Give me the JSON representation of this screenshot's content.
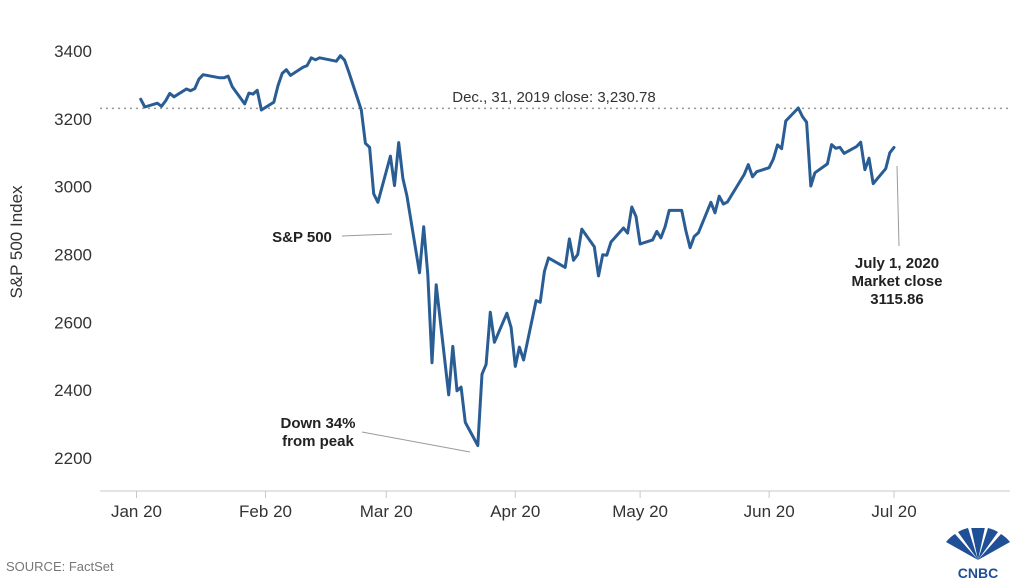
{
  "chart_data": {
    "type": "line",
    "ylabel": "S&P 500 Index",
    "ylim": [
      2100,
      3450
    ],
    "yticks": [
      2200,
      2400,
      2600,
      2800,
      3000,
      3200,
      3400
    ],
    "xlim": [
      "2020-01-01",
      "2020-07-31"
    ],
    "xticks": [
      {
        "label": "Jan 20",
        "date": "2020-01-01"
      },
      {
        "label": "Feb 20",
        "date": "2020-02-01"
      },
      {
        "label": "Mar 20",
        "date": "2020-03-01"
      },
      {
        "label": "Apr 20",
        "date": "2020-04-01"
      },
      {
        "label": "May 20",
        "date": "2020-05-01"
      },
      {
        "label": "Jun 20",
        "date": "2020-06-01"
      },
      {
        "label": "Jul 20",
        "date": "2020-07-01"
      }
    ],
    "grid": false,
    "series": [
      {
        "name": "S&P 500",
        "color": "#2a5d94",
        "x": [
          "2020-01-02",
          "2020-01-03",
          "2020-01-06",
          "2020-01-07",
          "2020-01-08",
          "2020-01-09",
          "2020-01-10",
          "2020-01-13",
          "2020-01-14",
          "2020-01-15",
          "2020-01-16",
          "2020-01-17",
          "2020-01-21",
          "2020-01-22",
          "2020-01-23",
          "2020-01-24",
          "2020-01-27",
          "2020-01-28",
          "2020-01-29",
          "2020-01-30",
          "2020-01-31",
          "2020-02-03",
          "2020-02-04",
          "2020-02-05",
          "2020-02-06",
          "2020-02-07",
          "2020-02-10",
          "2020-02-11",
          "2020-02-12",
          "2020-02-13",
          "2020-02-14",
          "2020-02-18",
          "2020-02-19",
          "2020-02-20",
          "2020-02-21",
          "2020-02-24",
          "2020-02-25",
          "2020-02-26",
          "2020-02-27",
          "2020-02-28",
          "2020-03-02",
          "2020-03-03",
          "2020-03-04",
          "2020-03-05",
          "2020-03-06",
          "2020-03-09",
          "2020-03-10",
          "2020-03-11",
          "2020-03-12",
          "2020-03-13",
          "2020-03-16",
          "2020-03-17",
          "2020-03-18",
          "2020-03-19",
          "2020-03-20",
          "2020-03-23",
          "2020-03-24",
          "2020-03-25",
          "2020-03-26",
          "2020-03-27",
          "2020-03-30",
          "2020-03-31",
          "2020-04-01",
          "2020-04-02",
          "2020-04-03",
          "2020-04-06",
          "2020-04-07",
          "2020-04-08",
          "2020-04-09",
          "2020-04-13",
          "2020-04-14",
          "2020-04-15",
          "2020-04-16",
          "2020-04-17",
          "2020-04-20",
          "2020-04-21",
          "2020-04-22",
          "2020-04-23",
          "2020-04-24",
          "2020-04-27",
          "2020-04-28",
          "2020-04-29",
          "2020-04-30",
          "2020-05-01",
          "2020-05-04",
          "2020-05-05",
          "2020-05-06",
          "2020-05-07",
          "2020-05-08",
          "2020-05-11",
          "2020-05-12",
          "2020-05-13",
          "2020-05-14",
          "2020-05-15",
          "2020-05-18",
          "2020-05-19",
          "2020-05-20",
          "2020-05-21",
          "2020-05-22",
          "2020-05-26",
          "2020-05-27",
          "2020-05-28",
          "2020-05-29",
          "2020-06-01",
          "2020-06-02",
          "2020-06-03",
          "2020-06-04",
          "2020-06-05",
          "2020-06-08",
          "2020-06-09",
          "2020-06-10",
          "2020-06-11",
          "2020-06-12",
          "2020-06-15",
          "2020-06-16",
          "2020-06-17",
          "2020-06-18",
          "2020-06-19",
          "2020-06-22",
          "2020-06-23",
          "2020-06-24",
          "2020-06-25",
          "2020-06-26",
          "2020-06-29",
          "2020-06-30",
          "2020-07-01"
        ],
        "values": [
          3258,
          3235,
          3246,
          3237,
          3253,
          3275,
          3265,
          3288,
          3283,
          3289,
          3317,
          3330,
          3321,
          3321,
          3326,
          3295,
          3244,
          3276,
          3273,
          3284,
          3226,
          3249,
          3298,
          3334,
          3345,
          3328,
          3352,
          3357,
          3380,
          3374,
          3380,
          3370,
          3386,
          3373,
          3338,
          3226,
          3128,
          3116,
          2979,
          2954,
          3090,
          3003,
          3130,
          3024,
          2972,
          2746,
          2882,
          2741,
          2481,
          2711,
          2386,
          2529,
          2398,
          2409,
          2305,
          2237,
          2447,
          2476,
          2630,
          2541,
          2627,
          2585,
          2470,
          2527,
          2489,
          2664,
          2659,
          2750,
          2790,
          2762,
          2846,
          2783,
          2800,
          2875,
          2823,
          2737,
          2799,
          2798,
          2837,
          2878,
          2863,
          2940,
          2912,
          2831,
          2843,
          2868,
          2849,
          2882,
          2930,
          2930,
          2870,
          2820,
          2853,
          2864,
          2954,
          2923,
          2972,
          2949,
          2955,
          3036,
          3065,
          3029,
          3044,
          3056,
          3081,
          3123,
          3112,
          3194,
          3232,
          3207,
          3190,
          3002,
          3041,
          3067,
          3124,
          3113,
          3116,
          3098,
          3118,
          3131,
          3050,
          3084,
          3009,
          3053,
          3100,
          3115.86
        ]
      }
    ],
    "reference_line": {
      "value": 3230.78,
      "label": "Dec., 31, 2019 close:  3,230.78"
    },
    "annotations": [
      {
        "id": "series-label",
        "lines": [
          "S&P 500"
        ],
        "bold": true
      },
      {
        "id": "trough",
        "lines": [
          "Down 34%",
          "from peak"
        ],
        "bold": true
      },
      {
        "id": "last-close",
        "lines": [
          "July 1, 2020",
          "Market close",
          "3115.86"
        ],
        "bold": true
      }
    ],
    "source": "SOURCE: FactSet",
    "brand": "CNBC"
  }
}
